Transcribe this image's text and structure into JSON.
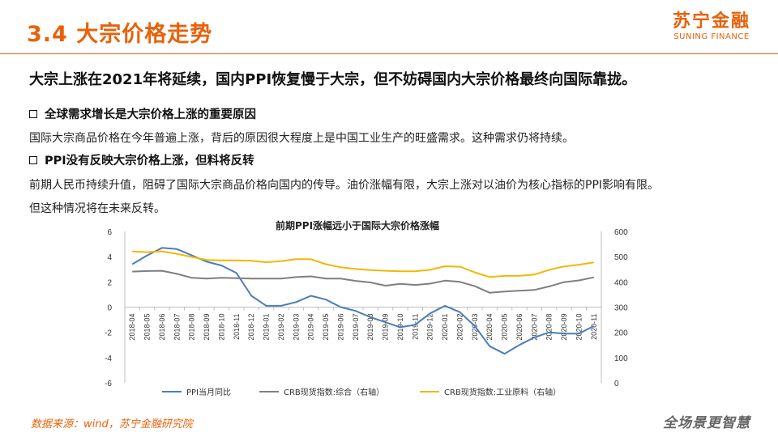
{
  "header": {
    "title": "3.4 大宗价格走势",
    "logo_cn": "苏宁金融",
    "logo_en": "SUNING FINANCE"
  },
  "headline": "大宗上涨在2021年将延续，国内PPI恢复慢于大宗，但不妨碍国内大宗价格最终向国际靠拢。",
  "sections": [
    {
      "heading": "全球需求增长是大宗价格上涨的重要原因",
      "lines": [
        "国际大宗商品价格在今年普遍上涨，背后的原因很大程度上是中国工业生产的旺盛需求。这种需求仍将持续。"
      ]
    },
    {
      "heading": "PPI没有反映大宗价格上涨，但料将反转",
      "lines": [
        "前期人民币持续升值，阻碍了国际大宗商品价格向国内的传导。油价涨幅有限，大宗上涨对以油价为核心指标的PPI影响有限。",
        "但这种情况将在未来反转。"
      ]
    }
  ],
  "chart_data": {
    "type": "line",
    "title": "前期PPI涨幅远小于国际大宗价格涨幅",
    "x": [
      "2018-04",
      "2018-05",
      "2018-06",
      "2018-07",
      "2018-08",
      "2018-09",
      "2018-10",
      "2018-11",
      "2018-12",
      "2019-01",
      "2019-02",
      "2019-03",
      "2019-04",
      "2019-05",
      "2019-06",
      "2019-07",
      "2019-08",
      "2019-09",
      "2019-10",
      "2019-11",
      "2019-12",
      "2020-01",
      "2020-02",
      "2020-03",
      "2020-04",
      "2020-05",
      "2020-06",
      "2020-07",
      "2020-08",
      "2020-09",
      "2020-10",
      "2020-11"
    ],
    "ylim_left": [
      -6,
      6
    ],
    "yticks_left": [
      -6,
      -4,
      -2,
      0,
      2,
      4,
      6
    ],
    "ylim_right": [
      0,
      600
    ],
    "yticks_right": [
      0,
      100,
      200,
      300,
      400,
      500,
      600
    ],
    "grid": false,
    "legend_position": "bottom",
    "series": [
      {
        "name": "PPI当月同比",
        "axis": "left",
        "color": "#4a7ebb",
        "values": [
          3.4,
          4.1,
          4.7,
          4.6,
          4.1,
          3.6,
          3.3,
          2.7,
          0.9,
          0.1,
          0.1,
          0.4,
          0.9,
          0.6,
          0.0,
          -0.3,
          -0.8,
          -1.2,
          -1.6,
          -1.4,
          -0.5,
          0.1,
          -0.4,
          -1.5,
          -3.1,
          -3.7,
          -3.0,
          -2.4,
          -2.0,
          -2.1,
          -2.1,
          -1.5
        ]
      },
      {
        "name": "CRB现货指数:综合（右轴）",
        "axis": "right",
        "color": "#7f7f7f",
        "values": [
          441,
          443,
          444,
          432,
          416,
          413,
          416,
          415,
          413,
          413,
          413,
          419,
          422,
          413,
          413,
          404,
          398,
          385,
          392,
          388,
          393,
          405,
          400,
          383,
          357,
          362,
          365,
          368,
          382,
          399,
          406,
          418
        ]
      },
      {
        "name": "CRB现货指数:工业原料（右轴）",
        "axis": "right",
        "color": "#f2b705",
        "values": [
          521,
          518,
          521,
          511,
          499,
          487,
          485,
          485,
          484,
          478,
          482,
          490,
          490,
          470,
          458,
          451,
          447,
          444,
          442,
          442,
          448,
          462,
          460,
          438,
          419,
          424,
          424,
          429,
          448,
          461,
          468,
          477
        ]
      }
    ]
  },
  "footer": {
    "source": "数据来源：wind，苏宁金融研究院",
    "slogan": "全场景更智慧"
  }
}
